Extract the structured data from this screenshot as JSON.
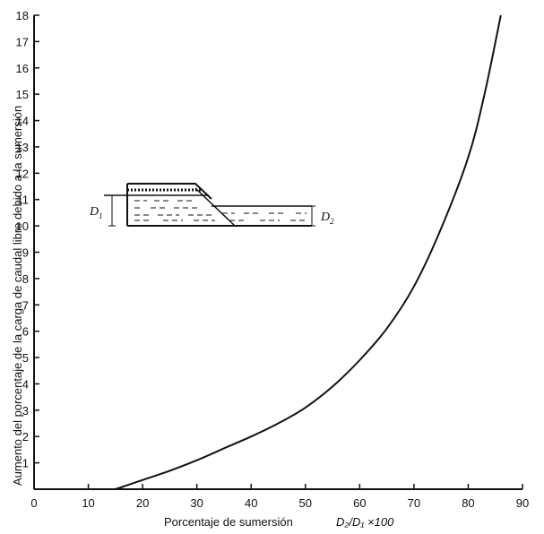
{
  "chart_data": {
    "type": "line",
    "title": "",
    "xlabel": "Porcentaje de sumersión",
    "xlabel_formula": "D₂/D₁ ×100",
    "ylabel": "Aumento del porcentaje de la carga de caudal libre debido a la sumersión",
    "xlim": [
      0,
      90
    ],
    "ylim": [
      0,
      18
    ],
    "x_ticks": [
      "0",
      "10",
      "20",
      "30",
      "40",
      "50",
      "60",
      "70",
      "80",
      "90"
    ],
    "y_ticks": [
      "1",
      "2",
      "3",
      "4",
      "5",
      "6",
      "7",
      "8",
      "9",
      "10",
      "11",
      "12",
      "13",
      "14",
      "15",
      "16",
      "17",
      "18"
    ],
    "grid": false,
    "series": [
      {
        "x": [
          15,
          20,
          25,
          30,
          35,
          40,
          45,
          50,
          55,
          60,
          65,
          70,
          75,
          80,
          83,
          86
        ],
        "y": [
          0,
          0.35,
          0.7,
          1.1,
          1.55,
          2.0,
          2.5,
          3.1,
          3.9,
          4.9,
          6.1,
          7.7,
          9.9,
          12.6,
          15.0,
          18.0
        ]
      }
    ],
    "inset": {
      "labels": [
        "D₁",
        "D₂"
      ]
    },
    "colors": {
      "line": "#111111",
      "background": "#ffffff"
    }
  }
}
